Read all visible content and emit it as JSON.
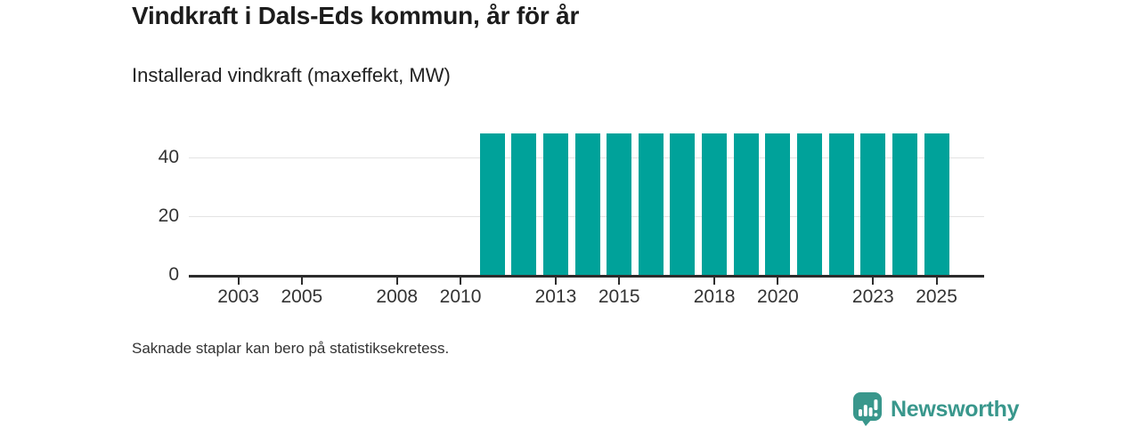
{
  "header": {
    "title": "Vindkraft i Dals-Eds kommun, år för år",
    "subtitle": "Installerad vindkraft (maxeffekt, MW)"
  },
  "chart_data": {
    "type": "bar",
    "title": "Vindkraft i Dals-Eds kommun, år för år",
    "subtitle": "Installerad vindkraft (maxeffekt, MW)",
    "ylabel": "Installerad vindkraft (maxeffekt, MW)",
    "xlabel": "",
    "unit": "MW",
    "categories": [
      2002,
      2003,
      2004,
      2005,
      2006,
      2007,
      2008,
      2009,
      2010,
      2011,
      2012,
      2013,
      2014,
      2015,
      2016,
      2017,
      2018,
      2019,
      2020,
      2021,
      2022,
      2023,
      2024,
      2025
    ],
    "values": [
      null,
      null,
      null,
      null,
      null,
      null,
      null,
      null,
      null,
      48.3,
      48.3,
      48.3,
      48.3,
      48.3,
      48.3,
      48.3,
      48.3,
      48.3,
      48.3,
      48.3,
      48.3,
      48.3,
      48.3,
      48.3
    ],
    "x_tick_years": [
      2003,
      2005,
      2008,
      2010,
      2013,
      2015,
      2018,
      2020,
      2023,
      2025
    ],
    "y_ticks": [
      0,
      20,
      40
    ],
    "xlim": [
      2001.44,
      2026.5
    ],
    "ylim": [
      0,
      51.4
    ],
    "grid": "horizontal",
    "legend_position": "none",
    "bar_color": "#00a29a",
    "gridline_color": "#e3e3e3",
    "axis_color": "#2c2c2c"
  },
  "footnote": "Saknade staplar kan bero på statistiksekretess.",
  "branding": {
    "logo_text": "Newsworthy",
    "logo_color": "#39978c",
    "logo_icon": "bar-chart-speech-bubble-icon"
  }
}
